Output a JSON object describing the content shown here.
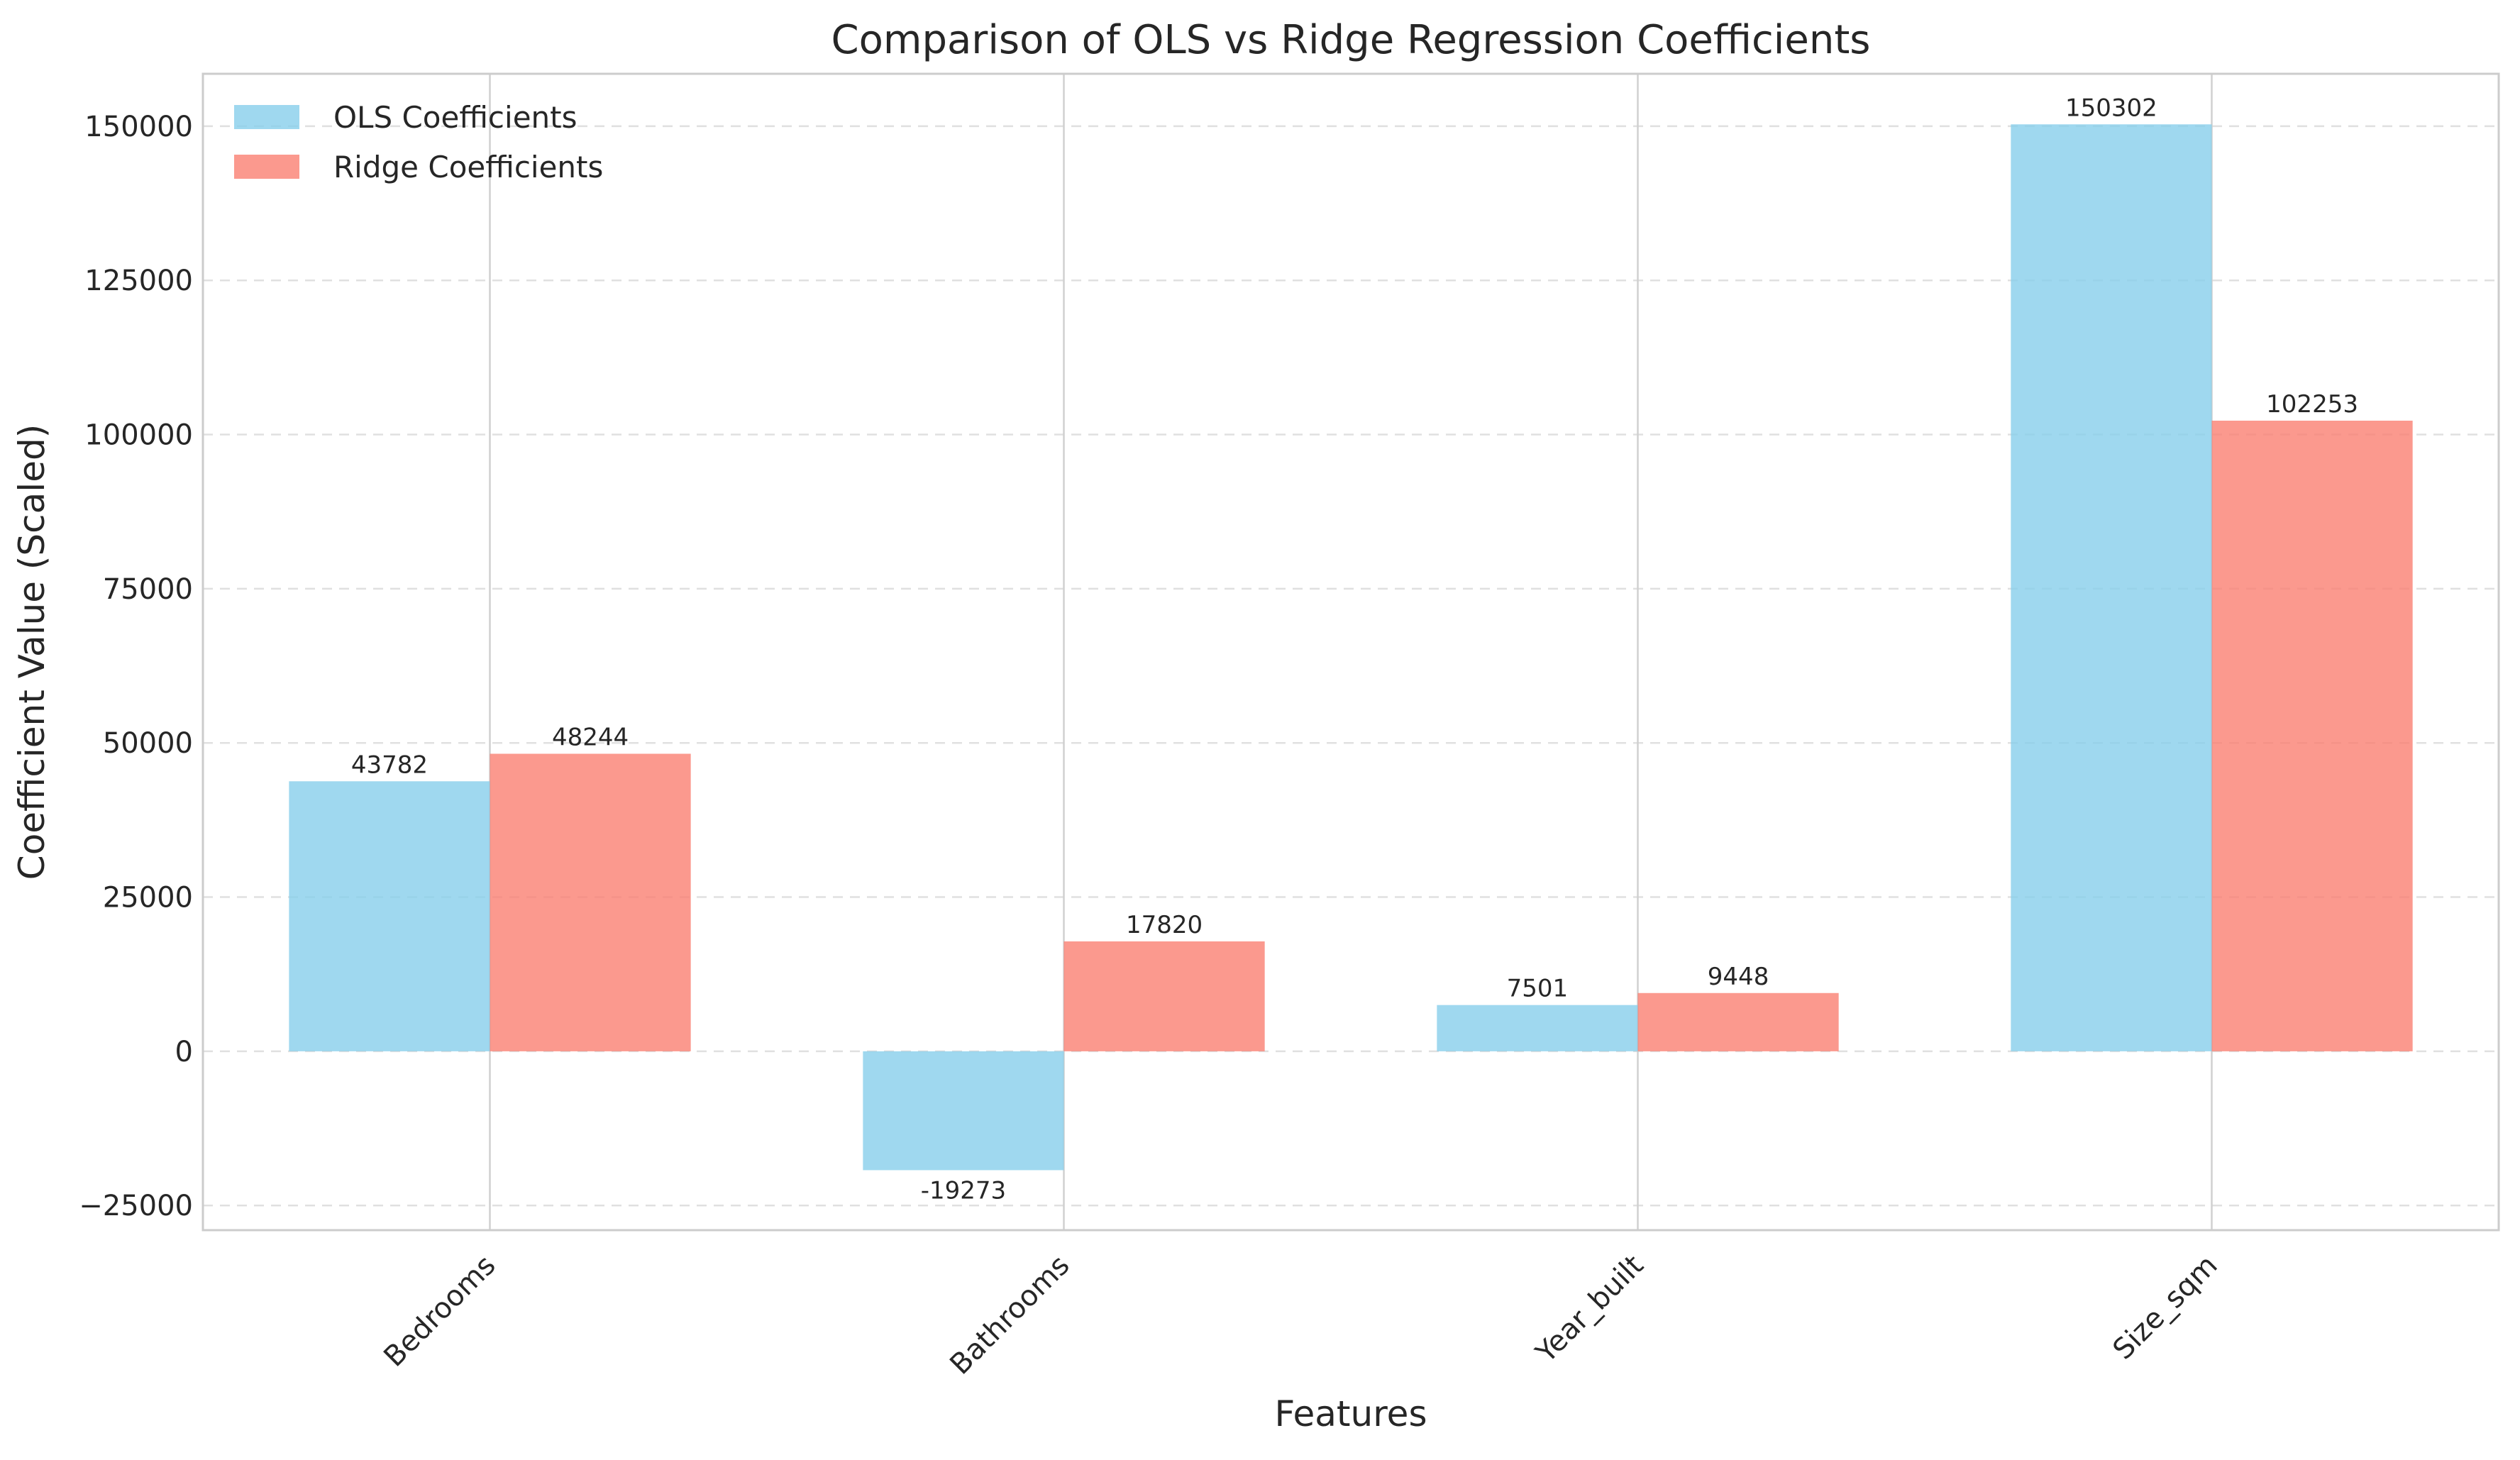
{
  "chart_data": {
    "type": "bar",
    "title": "Comparison of OLS vs Ridge Regression Coefficients",
    "xlabel": "Features",
    "ylabel": "Coefficient Value (Scaled)",
    "categories": [
      "Bedrooms",
      "Bathrooms",
      "Year_built",
      "Size_sqm"
    ],
    "series": [
      {
        "name": "OLS Coefficients",
        "values": [
          43782,
          -19273,
          7501,
          150302
        ],
        "color": "#87ceeb"
      },
      {
        "name": "Ridge Coefficients",
        "values": [
          48244,
          17820,
          9448,
          102253
        ],
        "color": "#fa8072"
      }
    ],
    "data_labels": [
      [
        "43782",
        "-19273",
        "7501",
        "150302"
      ],
      [
        "48244",
        "17820",
        "9448",
        "102253"
      ]
    ],
    "ylim": [
      -29000,
      158500
    ],
    "yticks": [
      -25000,
      0,
      25000,
      50000,
      75000,
      100000,
      125000,
      150000
    ],
    "ytick_labels": [
      "−25000",
      "0",
      "25000",
      "50000",
      "75000",
      "100000",
      "125000",
      "150000"
    ],
    "grid": true,
    "legend_position": "top-left",
    "x_tick_rotation": "45 degrees"
  }
}
